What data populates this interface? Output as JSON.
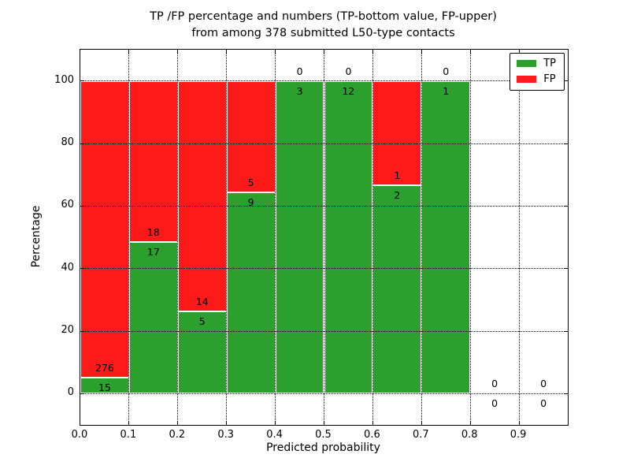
{
  "title": {
    "line1": "TP /FP percentage and numbers (TP-bottom value, FP-upper)",
    "line2": "from among 378 submitted L50-type contacts"
  },
  "axes": {
    "xlabel": "Predicted probability",
    "ylabel": "Percentage"
  },
  "legend": {
    "items": [
      {
        "label": "TP",
        "color": "#2ca02c"
      },
      {
        "label": "FP",
        "color": "#ff1a1a"
      }
    ]
  },
  "chart_data": {
    "type": "bar",
    "subtype": "stacked-percentage",
    "title": "TP /FP percentage and numbers (TP-bottom value, FP-upper) from among 378 submitted L50-type contacts",
    "xlabel": "Predicted probability",
    "ylabel": "Percentage",
    "xlim": [
      0.0,
      1.0
    ],
    "ylim": [
      -10,
      110
    ],
    "grid": "dotted, both axes, drawn over bars",
    "legend_position": "upper right",
    "series_colors": {
      "TP": "#2ca02c",
      "FP": "#ff1a1a"
    },
    "x_tick_labels": [
      "0.0",
      "0.1",
      "0.2",
      "0.3",
      "0.4",
      "0.5",
      "0.6",
      "0.7",
      "0.8",
      "0.9"
    ],
    "y_tick_labels": [
      "0",
      "20",
      "40",
      "60",
      "80",
      "100"
    ],
    "y_tick_values": [
      0,
      20,
      40,
      60,
      80,
      100
    ],
    "total_contacts": 378,
    "bins": [
      {
        "range": [
          0.0,
          0.1
        ],
        "tp": 15,
        "fp": 276,
        "tp_pct": 5.2
      },
      {
        "range": [
          0.1,
          0.2
        ],
        "tp": 17,
        "fp": 18,
        "tp_pct": 48.6
      },
      {
        "range": [
          0.2,
          0.3
        ],
        "tp": 5,
        "fp": 14,
        "tp_pct": 26.3
      },
      {
        "range": [
          0.3,
          0.4
        ],
        "tp": 9,
        "fp": 5,
        "tp_pct": 64.3
      },
      {
        "range": [
          0.4,
          0.5
        ],
        "tp": 3,
        "fp": 0,
        "tp_pct": 100
      },
      {
        "range": [
          0.5,
          0.6
        ],
        "tp": 12,
        "fp": 0,
        "tp_pct": 100
      },
      {
        "range": [
          0.6,
          0.7
        ],
        "tp": 2,
        "fp": 1,
        "tp_pct": 66.7
      },
      {
        "range": [
          0.7,
          0.8
        ],
        "tp": 1,
        "fp": 0,
        "tp_pct": 100
      },
      {
        "range": [
          0.8,
          0.9
        ],
        "tp": 0,
        "fp": 0,
        "tp_pct": null
      },
      {
        "range": [
          0.9,
          1.0
        ],
        "tp": 0,
        "fp": 0,
        "tp_pct": null
      }
    ]
  }
}
